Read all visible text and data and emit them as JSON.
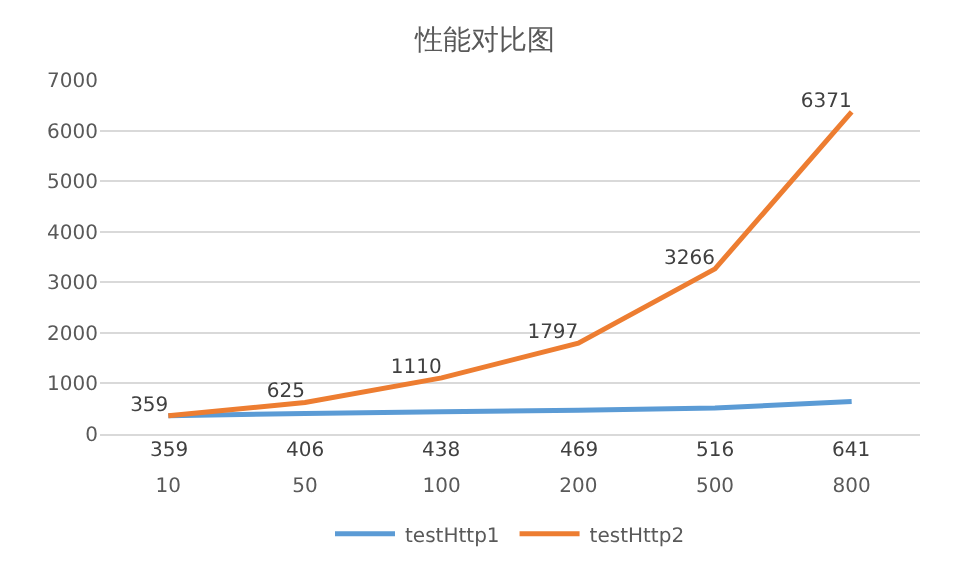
{
  "chart_data": {
    "type": "line",
    "title": "性能对比图",
    "categories": [
      "10",
      "50",
      "100",
      "200",
      "500",
      "800"
    ],
    "series": [
      {
        "name": "testHttp1",
        "color": "#5b9bd5",
        "values": [
          359,
          406,
          438,
          469,
          516,
          641
        ]
      },
      {
        "name": "testHttp2",
        "color": "#ed7d31",
        "values": [
          359,
          625,
          1110,
          1797,
          3266,
          6371
        ]
      }
    ],
    "ylim": [
      0,
      7000
    ],
    "yticks": [
      0,
      1000,
      2000,
      3000,
      4000,
      5000,
      6000,
      7000
    ],
    "grid": "y",
    "legend": "bottom",
    "data_labels": true,
    "marker": "none",
    "line_style": "solid"
  }
}
